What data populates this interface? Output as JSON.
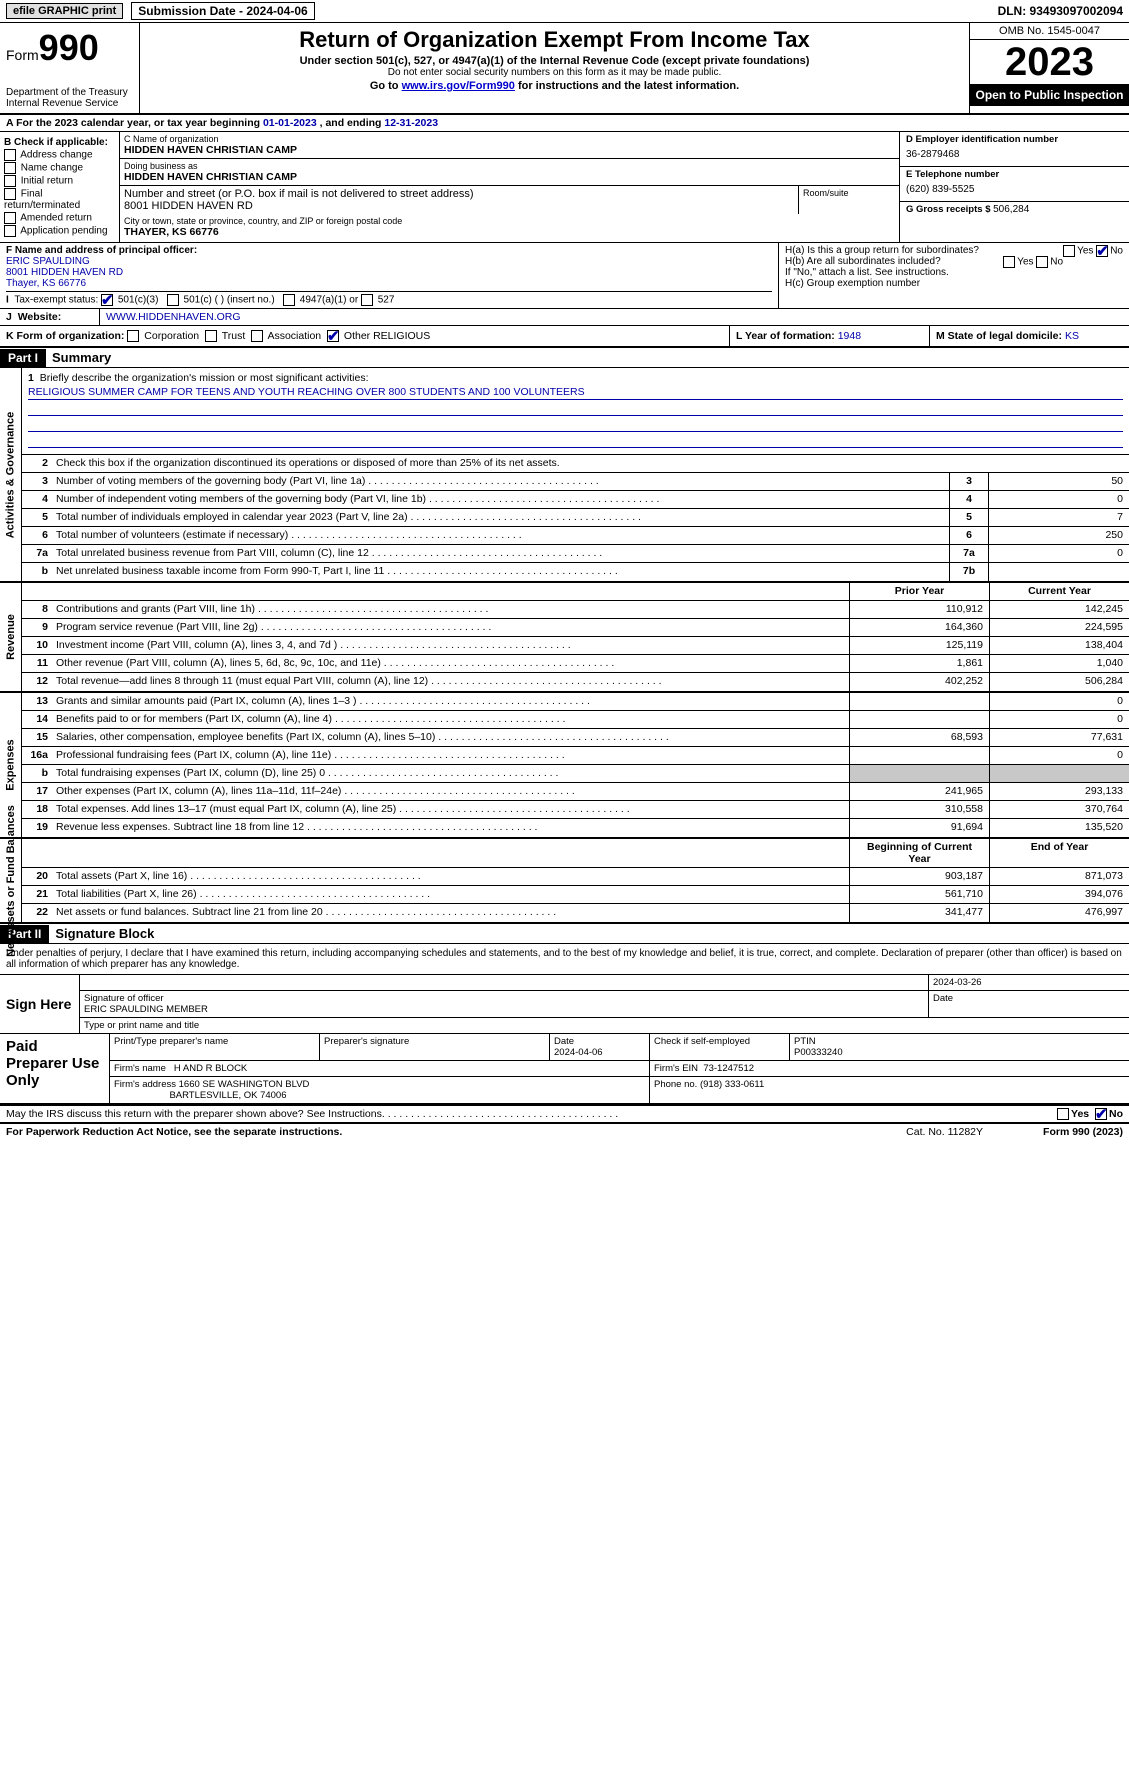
{
  "top": {
    "efile": "efile GRAPHIC print",
    "sub_date": "Submission Date - 2024-04-06",
    "dln": "DLN: 93493097002094"
  },
  "header": {
    "form_label": "Form",
    "form_no": "990",
    "dept": "Department of the Treasury",
    "irs": "Internal Revenue Service",
    "title": "Return of Organization Exempt From Income Tax",
    "sub1": "Under section 501(c), 527, or 4947(a)(1) of the Internal Revenue Code (except private foundations)",
    "sub2": "Do not enter social security numbers on this form as it may be made public.",
    "sub3_pre": "Go to ",
    "sub3_link": "www.irs.gov/Form990",
    "sub3_post": " for instructions and the latest information.",
    "omb": "OMB No. 1545-0047",
    "year": "2023",
    "open": "Open to Public Inspection"
  },
  "lineA": {
    "pre": "A For the 2023 calendar year, or tax year beginning ",
    "begin": "01-01-2023",
    "mid": " , and ending ",
    "end": "12-31-2023"
  },
  "B": {
    "hdr": "B Check if applicable:",
    "addr": "Address change",
    "name": "Name change",
    "init": "Initial return",
    "final": "Final return/terminated",
    "amend": "Amended return",
    "app": "Application pending"
  },
  "C": {
    "name_lbl": "C Name of organization",
    "name": "HIDDEN HAVEN CHRISTIAN CAMP",
    "dba_lbl": "Doing business as",
    "dba": "HIDDEN HAVEN CHRISTIAN CAMP",
    "street_lbl": "Number and street (or P.O. box if mail is not delivered to street address)",
    "street": "8001 HIDDEN HAVEN RD",
    "room_lbl": "Room/suite",
    "city_lbl": "City or town, state or province, country, and ZIP or foreign postal code",
    "city": "THAYER, KS  66776"
  },
  "D": {
    "lbl": "D Employer identification number",
    "val": "36-2879468"
  },
  "E": {
    "lbl": "E Telephone number",
    "val": "(620) 839-5525"
  },
  "G": {
    "lbl": "G Gross receipts $ ",
    "val": "506,284"
  },
  "F": {
    "lbl": "F  Name and address of principal officer:",
    "name": "ERIC SPAULDING",
    "street": "8001 HIDDEN HAVEN RD",
    "city": "Thayer, KS  66776"
  },
  "H": {
    "a": "H(a)  Is this a group return for subordinates?",
    "b": "H(b)  Are all subordinates included?",
    "b_note": "If \"No,\" attach a list. See instructions.",
    "c": "H(c)  Group exemption number",
    "yes": "Yes",
    "no": "No"
  },
  "I": {
    "lbl": "Tax-exempt status:",
    "o1": "501(c)(3)",
    "o2": "501(c) (  ) (insert no.)",
    "o3": "4947(a)(1) or",
    "o4": "527"
  },
  "J": {
    "lbl": "Website:",
    "val": "WWW.HIDDENHAVEN.ORG"
  },
  "K": {
    "lbl": "K Form of organization:",
    "corp": "Corporation",
    "trust": "Trust",
    "assoc": "Association",
    "other": "Other  RELIGIOUS"
  },
  "L": {
    "lbl": "L Year of formation: ",
    "val": "1948"
  },
  "M": {
    "lbl": "M State of legal domicile: ",
    "val": "KS"
  },
  "part1": {
    "hdr": "Part I",
    "title": "Summary"
  },
  "mission": {
    "lbl": "Briefly describe the organization's mission or most significant activities:",
    "text": "RELIGIOUS SUMMER CAMP FOR TEENS AND YOUTH REACHING OVER 800 STUDENTS AND 100 VOLUNTEERS"
  },
  "line2": "Check this box       if the organization discontinued its operations or disposed of more than 25% of its net assets.",
  "gov_rows": [
    {
      "n": "3",
      "d": "Number of voting members of the governing body (Part VI, line 1a)",
      "b": "3",
      "v": "50"
    },
    {
      "n": "4",
      "d": "Number of independent voting members of the governing body (Part VI, line 1b)",
      "b": "4",
      "v": "0"
    },
    {
      "n": "5",
      "d": "Total number of individuals employed in calendar year 2023 (Part V, line 2a)",
      "b": "5",
      "v": "7"
    },
    {
      "n": "6",
      "d": "Total number of volunteers (estimate if necessary)",
      "b": "6",
      "v": "250"
    },
    {
      "n": "7a",
      "d": "Total unrelated business revenue from Part VIII, column (C), line 12",
      "b": "7a",
      "v": "0"
    },
    {
      "n": "b",
      "d": "Net unrelated business taxable income from Form 990-T, Part I, line 11",
      "b": "7b",
      "v": ""
    }
  ],
  "py_hdr": "Prior Year",
  "cy_hdr": "Current Year",
  "rev_rows": [
    {
      "n": "8",
      "d": "Contributions and grants (Part VIII, line 1h)",
      "py": "110,912",
      "cy": "142,245"
    },
    {
      "n": "9",
      "d": "Program service revenue (Part VIII, line 2g)",
      "py": "164,360",
      "cy": "224,595"
    },
    {
      "n": "10",
      "d": "Investment income (Part VIII, column (A), lines 3, 4, and 7d )",
      "py": "125,119",
      "cy": "138,404"
    },
    {
      "n": "11",
      "d": "Other revenue (Part VIII, column (A), lines 5, 6d, 8c, 9c, 10c, and 11e)",
      "py": "1,861",
      "cy": "1,040"
    },
    {
      "n": "12",
      "d": "Total revenue—add lines 8 through 11 (must equal Part VIII, column (A), line 12)",
      "py": "402,252",
      "cy": "506,284"
    }
  ],
  "exp_rows": [
    {
      "n": "13",
      "d": "Grants and similar amounts paid (Part IX, column (A), lines 1–3 )",
      "py": "",
      "cy": "0"
    },
    {
      "n": "14",
      "d": "Benefits paid to or for members (Part IX, column (A), line 4)",
      "py": "",
      "cy": "0"
    },
    {
      "n": "15",
      "d": "Salaries, other compensation, employee benefits (Part IX, column (A), lines 5–10)",
      "py": "68,593",
      "cy": "77,631"
    },
    {
      "n": "16a",
      "d": "Professional fundraising fees (Part IX, column (A), line 11e)",
      "py": "",
      "cy": "0"
    },
    {
      "n": "b",
      "d": "Total fundraising expenses (Part IX, column (D), line 25) 0",
      "py": "GREY",
      "cy": "GREY"
    },
    {
      "n": "17",
      "d": "Other expenses (Part IX, column (A), lines 11a–11d, 11f–24e)",
      "py": "241,965",
      "cy": "293,133"
    },
    {
      "n": "18",
      "d": "Total expenses. Add lines 13–17 (must equal Part IX, column (A), line 25)",
      "py": "310,558",
      "cy": "370,764"
    },
    {
      "n": "19",
      "d": "Revenue less expenses. Subtract line 18 from line 12",
      "py": "91,694",
      "cy": "135,520"
    }
  ],
  "na_hdr": {
    "py": "Beginning of Current Year",
    "cy": "End of Year"
  },
  "na_rows": [
    {
      "n": "20",
      "d": "Total assets (Part X, line 16)",
      "py": "903,187",
      "cy": "871,073"
    },
    {
      "n": "21",
      "d": "Total liabilities (Part X, line 26)",
      "py": "561,710",
      "cy": "394,076"
    },
    {
      "n": "22",
      "d": "Net assets or fund balances. Subtract line 21 from line 20",
      "py": "341,477",
      "cy": "476,997"
    }
  ],
  "part2": {
    "hdr": "Part II",
    "title": "Signature Block"
  },
  "perjury": "Under penalties of perjury, I declare that I have examined this return, including accompanying schedules and statements, and to the best of my knowledge and belief, it is true, correct, and complete. Declaration of preparer (other than officer) is based on all information of which preparer has any knowledge.",
  "sign": {
    "lbl": "Sign Here",
    "date": "2024-03-26",
    "sig_lbl": "Signature of officer",
    "name": "ERIC SPAULDING MEMBER",
    "type_lbl": "Type or print name and title",
    "date_lbl": "Date"
  },
  "prep": {
    "lbl": "Paid Preparer Use Only",
    "name_lbl": "Print/Type preparer's name",
    "sig_lbl": "Preparer's signature",
    "date_lbl": "Date",
    "date": "2024-04-06",
    "check_lbl": "Check         if self-employed",
    "ptin_lbl": "PTIN",
    "ptin": "P00333240",
    "firm_lbl": "Firm's name",
    "firm": "H AND R BLOCK",
    "ein_lbl": "Firm's EIN",
    "ein": "73-1247512",
    "addr_lbl": "Firm's address",
    "addr1": "1660 SE WASHINGTON BLVD",
    "addr2": "BARTLESVILLE, OK  74006",
    "phone_lbl": "Phone no.",
    "phone": "(918) 333-0611"
  },
  "discuss": "May the IRS discuss this return with the preparer shown above? See Instructions.",
  "footer": {
    "pra": "For Paperwork Reduction Act Notice, see the separate instructions.",
    "cat": "Cat. No. 11282Y",
    "form": "Form 990 (2023)"
  },
  "side_labels": {
    "gov": "Activities & Governance",
    "rev": "Revenue",
    "exp": "Expenses",
    "na": "Net Assets or Fund Balances"
  }
}
